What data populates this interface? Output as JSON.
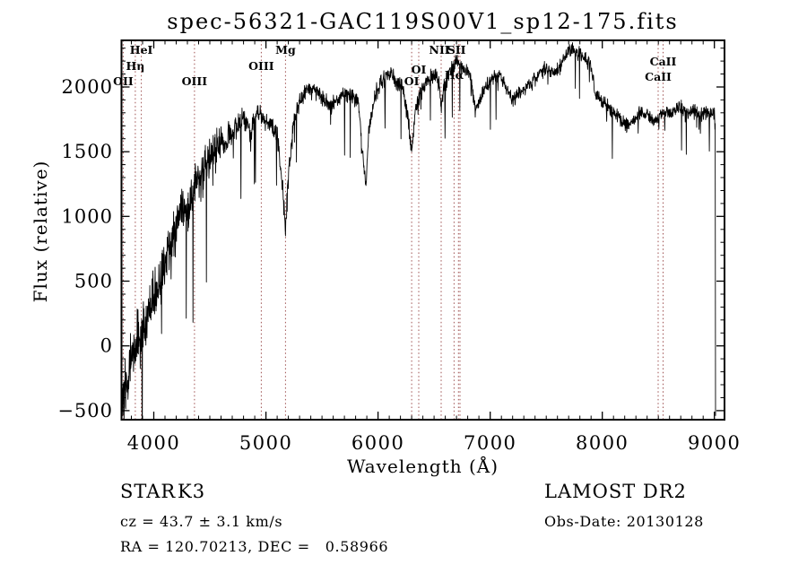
{
  "chart_data": {
    "type": "line",
    "title": "spec-56321-GAC119S00V1_sp12-175.fits",
    "xlabel": "Wavelength (Å)",
    "ylabel": "Flux (relative)",
    "xlim": [
      3712,
      9090
    ],
    "ylim": [
      -570,
      2360
    ],
    "x_major_ticks": [
      4000,
      5000,
      6000,
      7000,
      8000,
      9000
    ],
    "x_minor_step": 100,
    "y_major_ticks": [
      -500,
      0,
      500,
      1000,
      1500,
      2000
    ],
    "y_minor_step": 100,
    "grid": false,
    "legend": "none",
    "series_color": "#000000",
    "line_marker_color": "#9e5151",
    "marked_wavelengths": [
      3727,
      3835,
      3889,
      4363,
      4959,
      5175,
      6300,
      6363,
      6563,
      6678,
      6717,
      6731,
      8498,
      8542
    ],
    "line_labels": [
      {
        "text": "OII",
        "wavelength": 3727,
        "y": 95
      },
      {
        "text": "Hη",
        "wavelength": 3835,
        "y": 78
      },
      {
        "text": "HeI",
        "wavelength": 3889,
        "y": 60
      },
      {
        "text": "OIII",
        "wavelength": 4363,
        "y": 95
      },
      {
        "text": "OIII",
        "wavelength": 4959,
        "y": 78
      },
      {
        "text": "Mg",
        "wavelength": 5175,
        "y": 60
      },
      {
        "text": "OI",
        "wavelength": 6300,
        "y": 95
      },
      {
        "text": "OI",
        "wavelength": 6363,
        "y": 82
      },
      {
        "text": "NII",
        "wavelength": 6548,
        "y": 60
      },
      {
        "text": "SII",
        "wavelength": 6700,
        "y": 60
      },
      {
        "text": "Hα",
        "wavelength": 6680,
        "y": 88
      },
      {
        "text": "CaII",
        "wavelength": 8542,
        "y": 73
      },
      {
        "text": "CaII",
        "wavelength": 8498,
        "y": 90
      }
    ],
    "spectrum_envelope": {
      "wavelength": [
        3712,
        3730,
        3760,
        3790,
        3820,
        3850,
        3880,
        3910,
        3950,
        4000,
        4050,
        4100,
        4150,
        4200,
        4250,
        4300,
        4340,
        4380,
        4420,
        4470,
        4520,
        4570,
        4620,
        4680,
        4740,
        4800,
        4861,
        4920,
        4980,
        5040,
        5100,
        5155,
        5175,
        5195,
        5235,
        5280,
        5340,
        5400,
        5460,
        5520,
        5580,
        5640,
        5700,
        5760,
        5820,
        5870,
        5893,
        5915,
        5980,
        6040,
        6100,
        6160,
        6220,
        6270,
        6300,
        6330,
        6380,
        6440,
        6500,
        6540,
        6563,
        6590,
        6650,
        6710,
        6760,
        6820,
        6870,
        6910,
        6960,
        7020,
        7080,
        7140,
        7200,
        7260,
        7320,
        7380,
        7440,
        7500,
        7560,
        7620,
        7680,
        7740,
        7800,
        7860,
        7900,
        7935,
        7980,
        8040,
        8100,
        8160,
        8220,
        8280,
        8340,
        8400,
        8460,
        8520,
        8580,
        8640,
        8700,
        8760,
        8820,
        8880,
        8940,
        9000,
        9008
      ],
      "flux": [
        -480,
        -300,
        -350,
        -150,
        -60,
        80,
        30,
        150,
        260,
        420,
        490,
        620,
        800,
        950,
        1100,
        1050,
        1150,
        1300,
        1350,
        1400,
        1500,
        1550,
        1600,
        1650,
        1700,
        1750,
        1650,
        1800,
        1750,
        1700,
        1650,
        1150,
        900,
        1250,
        1650,
        1850,
        1950,
        2000,
        1950,
        1900,
        1850,
        1900,
        1950,
        1950,
        1900,
        1400,
        1250,
        1650,
        1950,
        2050,
        2100,
        2050,
        2000,
        1750,
        1500,
        1800,
        1950,
        2050,
        2100,
        2050,
        1850,
        2000,
        2150,
        2200,
        2150,
        2100,
        1800,
        1900,
        2000,
        2050,
        2100,
        2000,
        1900,
        1950,
        2000,
        2050,
        2100,
        2150,
        2100,
        2150,
        2250,
        2300,
        2250,
        2200,
        2150,
        1950,
        1900,
        1850,
        1800,
        1750,
        1700,
        1750,
        1800,
        1780,
        1750,
        1780,
        1800,
        1820,
        1850,
        1800,
        1820,
        1780,
        1800,
        1780,
        1750
      ]
    },
    "end_drop": {
      "wavelength": 9010,
      "flux": -540
    },
    "noise": {
      "seed": 13,
      "description": "high-frequency pixel noise, strongest at blue end"
    }
  },
  "footer": {
    "class_label": "STAR",
    "subclass": "K3",
    "cz_line": "cz = 43.7 ± 3.1 km/s",
    "radec_line": "RA = 120.70213, DEC =   0.58966",
    "survey": "LAMOST DR2",
    "obsdate_line": "Obs-Date: 20130128"
  }
}
